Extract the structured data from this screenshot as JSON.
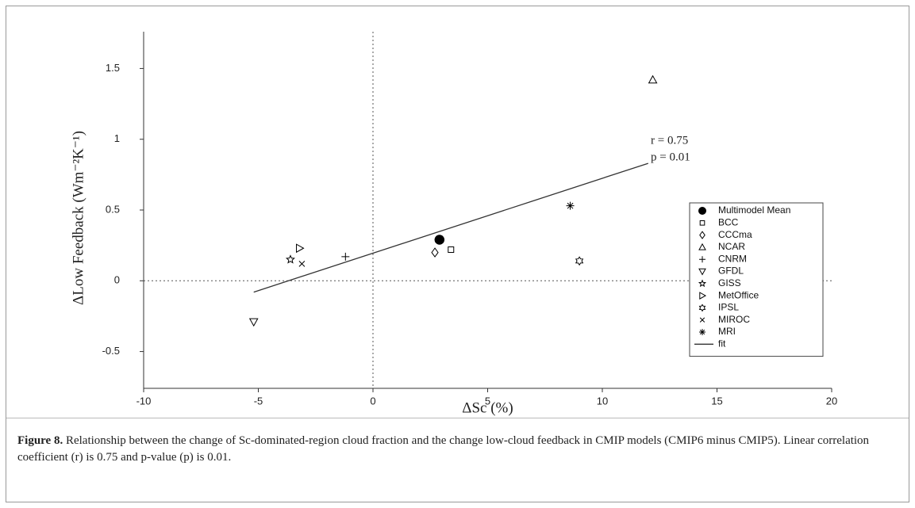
{
  "chart_data": {
    "type": "scatter",
    "xlabel": "ΔSc (%)",
    "ylabel": "ΔLow Feedback (Wm⁻²K⁻¹)",
    "xlim": [
      -10,
      20
    ],
    "xticks": [
      -10,
      -5,
      0,
      5,
      10,
      15,
      20
    ],
    "ylim": [
      -0.76,
      1.76
    ],
    "yticks": [
      -0.5,
      0,
      0.5,
      1,
      1.5
    ],
    "zero_lines": true,
    "annotations": [
      "r = 0.75",
      "p = 0.01"
    ],
    "series": [
      {
        "name": "Multimodel Mean",
        "marker": "circle-filled",
        "color": "#000000",
        "x": [
          2.9
        ],
        "values": [
          0.29
        ]
      },
      {
        "name": "BCC",
        "marker": "square",
        "color": "#000000",
        "x": [
          3.4
        ],
        "values": [
          0.22
        ]
      },
      {
        "name": "CCCma",
        "marker": "diamond",
        "color": "#000000",
        "x": [
          2.7
        ],
        "values": [
          0.2
        ]
      },
      {
        "name": "NCAR",
        "marker": "triangle-up",
        "color": "#000000",
        "x": [
          12.2
        ],
        "values": [
          1.42
        ]
      },
      {
        "name": "CNRM",
        "marker": "plus",
        "color": "#000000",
        "x": [
          -1.2
        ],
        "values": [
          0.17
        ]
      },
      {
        "name": "GFDL",
        "marker": "triangle-down",
        "color": "#000000",
        "x": [
          -5.2
        ],
        "values": [
          -0.29
        ]
      },
      {
        "name": "GISS",
        "marker": "star",
        "color": "#000000",
        "x": [
          -3.6
        ],
        "values": [
          0.15
        ]
      },
      {
        "name": "MetOffice",
        "marker": "triangle-right",
        "color": "#000000",
        "x": [
          -3.2
        ],
        "values": [
          0.23
        ]
      },
      {
        "name": "IPSL",
        "marker": "hexagram",
        "color": "#000000",
        "x": [
          9.0
        ],
        "values": [
          0.14
        ]
      },
      {
        "name": "MIROC",
        "marker": "x",
        "color": "#000000",
        "x": [
          -3.1
        ],
        "values": [
          0.12
        ]
      },
      {
        "name": "MRI",
        "marker": "asterisk",
        "color": "#000000",
        "x": [
          8.6
        ],
        "values": [
          0.53
        ]
      }
    ],
    "fit": {
      "name": "fit",
      "color": "#333333",
      "x": [
        -5.2,
        12.0
      ],
      "values": [
        -0.08,
        0.83
      ]
    },
    "legend": "right"
  },
  "caption": {
    "label": "Figure 8.",
    "text": "Relationship between the change of Sc-dominated-region cloud fraction and the change low-cloud feedback in CMIP models (CMIP6 minus CMIP5). Linear correlation coefficient (r) is 0.75 and p-value (p) is 0.01."
  }
}
